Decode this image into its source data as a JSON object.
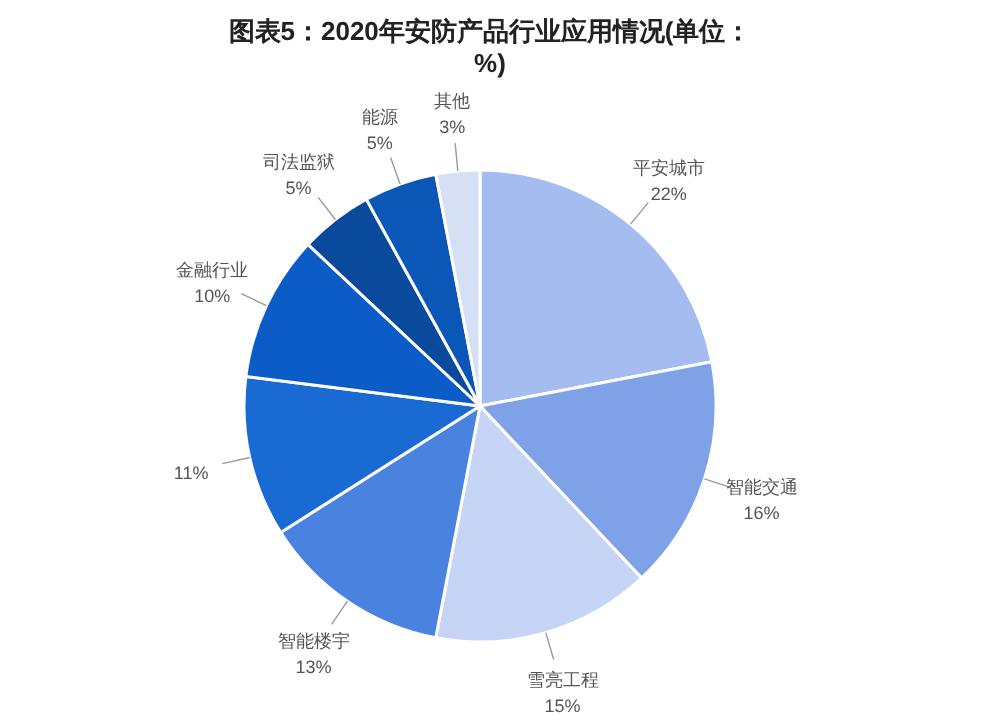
{
  "chart_data": {
    "type": "pie",
    "title": "图表5：2020年安防产品行业应用情况(单位：%)",
    "categories": [
      "平安城市",
      "智能交通",
      "雪亮工程",
      "智能楼宇",
      null,
      "金融行业",
      "司法监狱",
      "能源",
      "其他"
    ],
    "values": [
      22,
      16,
      15,
      13,
      11,
      10,
      5,
      5,
      3
    ],
    "value_labels": [
      "22%",
      "16%",
      "15%",
      "13%",
      "11%",
      "10%",
      "5%",
      "5%",
      "3%"
    ],
    "colors": [
      "#a4bcf0",
      "#7ea1e8",
      "#c6d5f6",
      "#4a82e0",
      "#1a6ad4",
      "#0b5cc7",
      "#0a4a9c",
      "#0b57b8",
      "#d6e0f5"
    ]
  }
}
